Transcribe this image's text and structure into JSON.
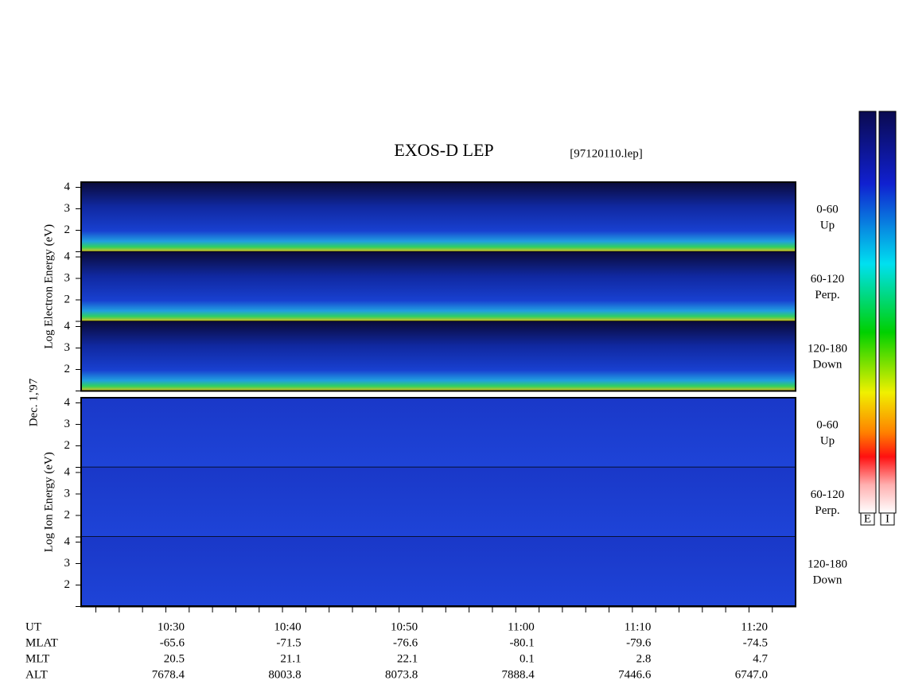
{
  "title": "EXOS-D LEP",
  "file": "[97120110.lep]",
  "date": "Dec. 1,'97",
  "groups": [
    {
      "label": "Log Electron Energy (eV)",
      "panels": [
        {
          "ticks": [
            4,
            3,
            2
          ],
          "angle": "0-60",
          "direction": "Up"
        },
        {
          "ticks": [
            4,
            3,
            2
          ],
          "angle": "60-120",
          "direction": "Perp."
        },
        {
          "ticks": [
            4,
            3,
            2
          ],
          "angle": "120-180",
          "direction": "Down"
        }
      ]
    },
    {
      "label": "Log Ion Energy (eV)",
      "panels": [
        {
          "ticks": [
            4,
            3,
            2
          ],
          "angle": "0-60",
          "direction": "Up"
        },
        {
          "ticks": [
            4,
            3,
            2
          ],
          "angle": "60-120",
          "direction": "Perp."
        },
        {
          "ticks": [
            4,
            3,
            2
          ],
          "angle": "120-180",
          "direction": "Down"
        }
      ]
    }
  ],
  "axis": {
    "rows": [
      {
        "name": "UT",
        "values": [
          "10:30",
          "10:40",
          "10:50",
          "11:00",
          "11:10",
          "11:20"
        ]
      },
      {
        "name": "MLAT",
        "values": [
          "-65.6",
          "-71.5",
          "-76.6",
          "-80.1",
          "-79.6",
          "-74.5"
        ]
      },
      {
        "name": "MLT",
        "values": [
          "20.5",
          "21.1",
          "22.1",
          "0.1",
          "2.8",
          "4.7"
        ]
      },
      {
        "name": "ALT",
        "values": [
          "7678.4",
          "8003.8",
          "8073.8",
          "7888.4",
          "7446.6",
          "6747.0"
        ]
      }
    ]
  },
  "colorbars": [
    "E",
    "I"
  ]
}
